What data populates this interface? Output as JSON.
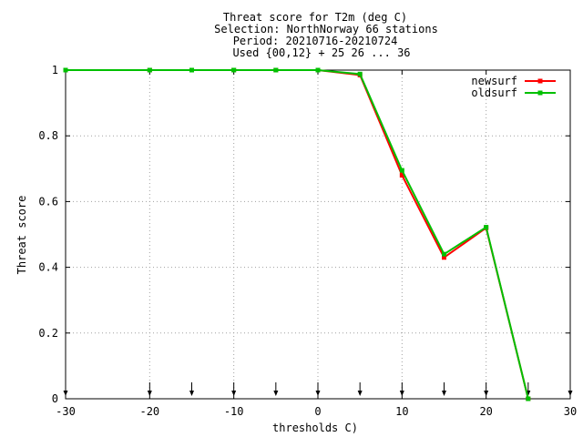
{
  "chart_data": {
    "type": "line",
    "title_lines": [
      "Threat score  for T2m (deg C)",
      "Selection: NorthNorway     66 stations",
      "Period: 20210716-20210724",
      "Used {00,12} + 25 26 ... 36"
    ],
    "xlabel": "thresholds C)",
    "ylabel": "Threat score",
    "xlim": [
      -30,
      30
    ],
    "ylim": [
      0,
      1
    ],
    "x_ticks": [
      "-30",
      "-20",
      "-10",
      "0",
      "10",
      "20",
      "30"
    ],
    "y_ticks": [
      "0",
      "0.2",
      "0.4",
      "0.6",
      "0.8",
      "1"
    ],
    "grid": true,
    "legend_position": "top-right",
    "x": [
      -30,
      -20,
      -15,
      -10,
      -5,
      0,
      5,
      10,
      15,
      20,
      25
    ],
    "series": [
      {
        "name": "newsurf",
        "color": "#ff0000",
        "values": [
          1,
          1,
          1,
          1,
          1,
          1,
          0.985,
          0.68,
          0.43,
          0.52,
          0.0
        ]
      },
      {
        "name": "oldsurf",
        "color": "#00c000",
        "values": [
          1,
          1,
          1,
          1,
          1,
          1,
          0.988,
          0.695,
          0.44,
          0.522,
          0.0
        ]
      }
    ],
    "threshold_markers": [
      -30,
      -20,
      -15,
      -10,
      -5,
      0,
      5,
      10,
      15,
      20,
      25,
      30
    ]
  }
}
